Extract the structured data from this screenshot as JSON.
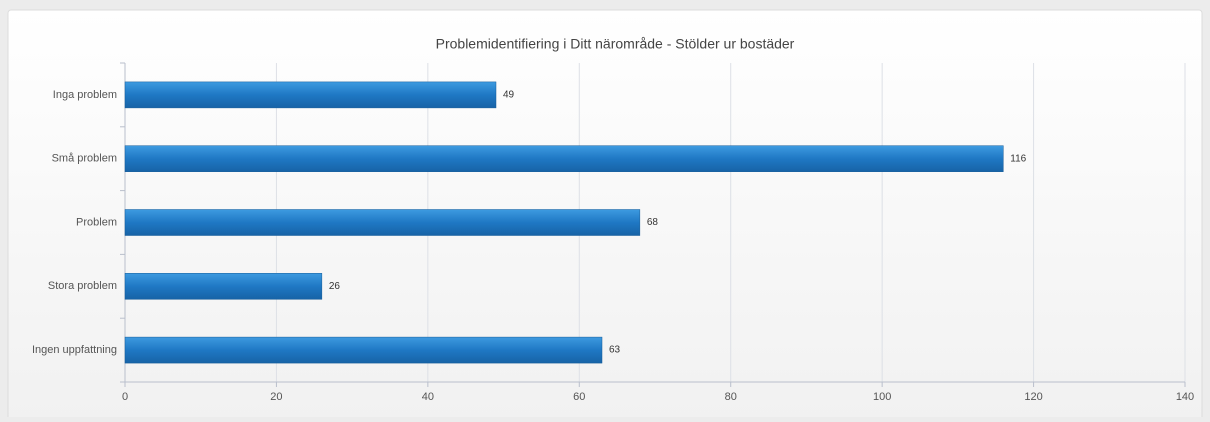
{
  "chart_data": {
    "type": "bar",
    "orientation": "horizontal",
    "title": "Problemidentifiering i Ditt närområde - Stölder ur bostäder",
    "categories": [
      "Inga problem",
      "Små problem",
      "Problem",
      "Stora problem",
      "Ingen uppfattning"
    ],
    "values": [
      49,
      116,
      68,
      26,
      63
    ],
    "color": "#1f78c4",
    "xlim": [
      0,
      140
    ],
    "xticks": [
      0,
      20,
      40,
      60,
      80,
      100,
      120,
      140
    ],
    "grid": true
  }
}
